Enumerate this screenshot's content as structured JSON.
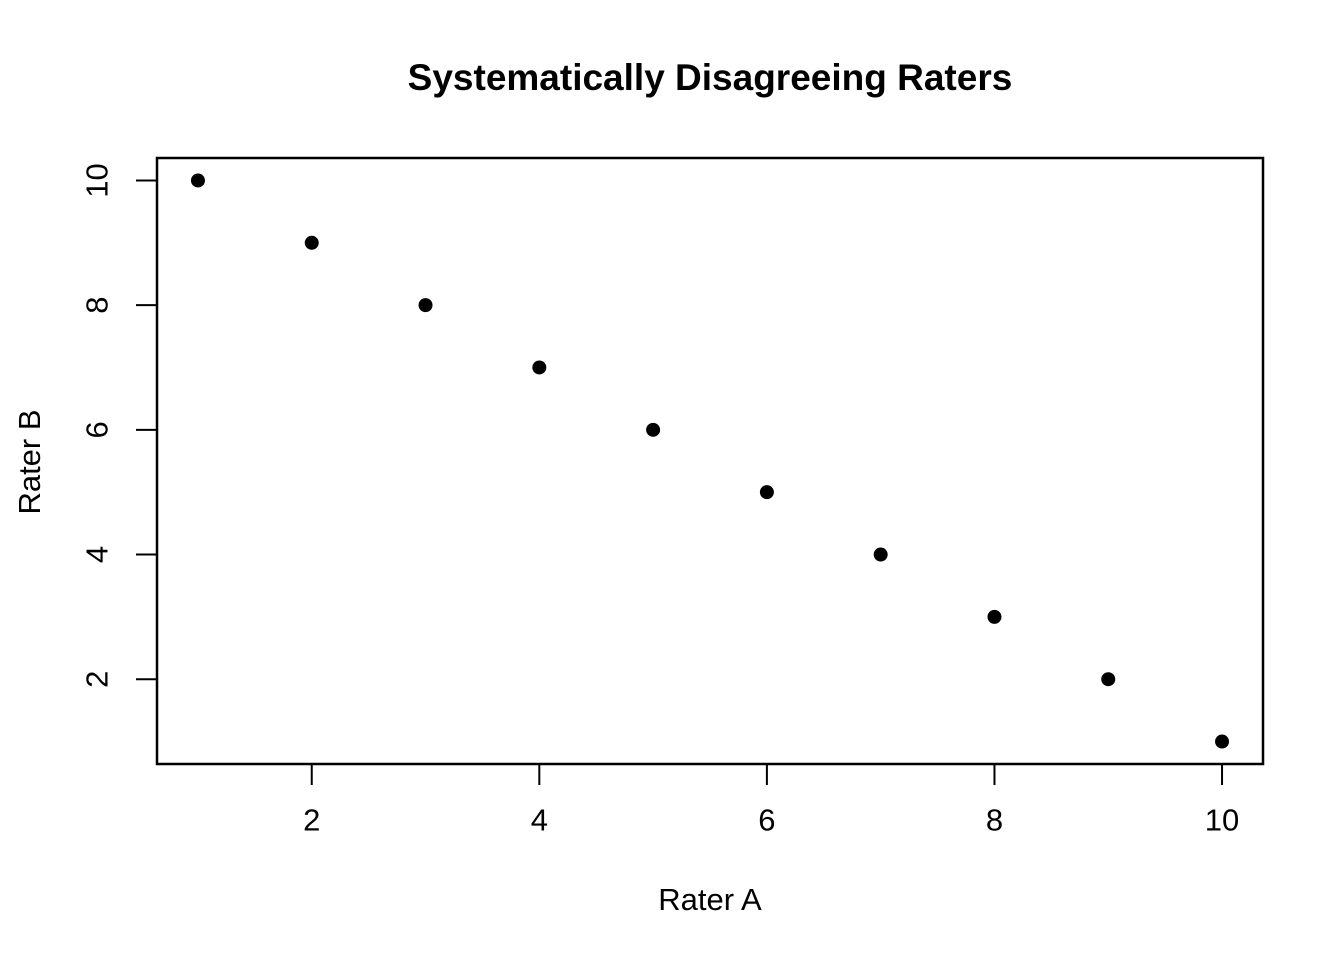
{
  "page": {
    "background": "#FFFFFF"
  },
  "chart_data": {
    "type": "scatter",
    "title": "Systematically Disagreeing Raters",
    "xlabel": "Rater A",
    "ylabel": "Rater B",
    "x": [
      1,
      2,
      3,
      4,
      5,
      6,
      7,
      8,
      9,
      10
    ],
    "y": [
      10,
      9,
      8,
      7,
      6,
      5,
      4,
      3,
      2,
      1
    ],
    "xticks": [
      2,
      4,
      6,
      8,
      10
    ],
    "yticks": [
      2,
      4,
      6,
      8,
      10
    ],
    "xlim": [
      0.64,
      10.36
    ],
    "ylim": [
      0.64,
      10.36
    ],
    "grid": false,
    "point_color": "#000000",
    "axis_color": "#000000",
    "background": "#FFFFFF"
  }
}
